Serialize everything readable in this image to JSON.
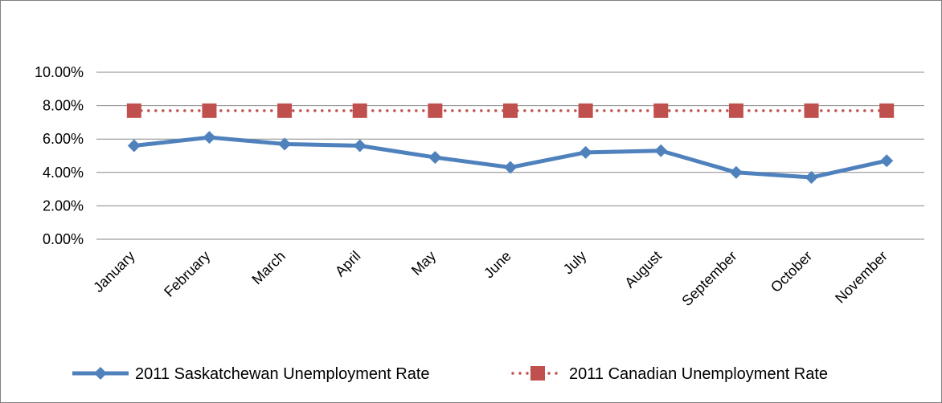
{
  "chart_data": {
    "type": "line",
    "title": "",
    "xlabel": "",
    "ylabel": "",
    "categories": [
      "January",
      "February",
      "March",
      "April",
      "May",
      "June",
      "July",
      "August",
      "September",
      "October",
      "November"
    ],
    "ylim": [
      0,
      10
    ],
    "yticks": [
      0,
      2,
      4,
      6,
      8,
      10
    ],
    "ytick_labels": [
      "0.00%",
      "2.00%",
      "4.00%",
      "6.00%",
      "8.00%",
      "10.00%"
    ],
    "grid": true,
    "legend_position": "bottom",
    "series": [
      {
        "name": "2011 Saskatchewan Unemployment Rate",
        "values": [
          5.6,
          6.1,
          5.7,
          5.6,
          4.9,
          4.3,
          5.2,
          5.3,
          4.0,
          3.7,
          4.7
        ],
        "color": "#4F81BD",
        "line_style": "solid",
        "marker": "diamond"
      },
      {
        "name": "2011 Canadian Unemployment Rate",
        "values": [
          7.7,
          7.7,
          7.7,
          7.7,
          7.7,
          7.7,
          7.7,
          7.7,
          7.7,
          7.7,
          7.7
        ],
        "color": "#C0504D",
        "line_style": "dotted",
        "marker": "square"
      }
    ]
  }
}
